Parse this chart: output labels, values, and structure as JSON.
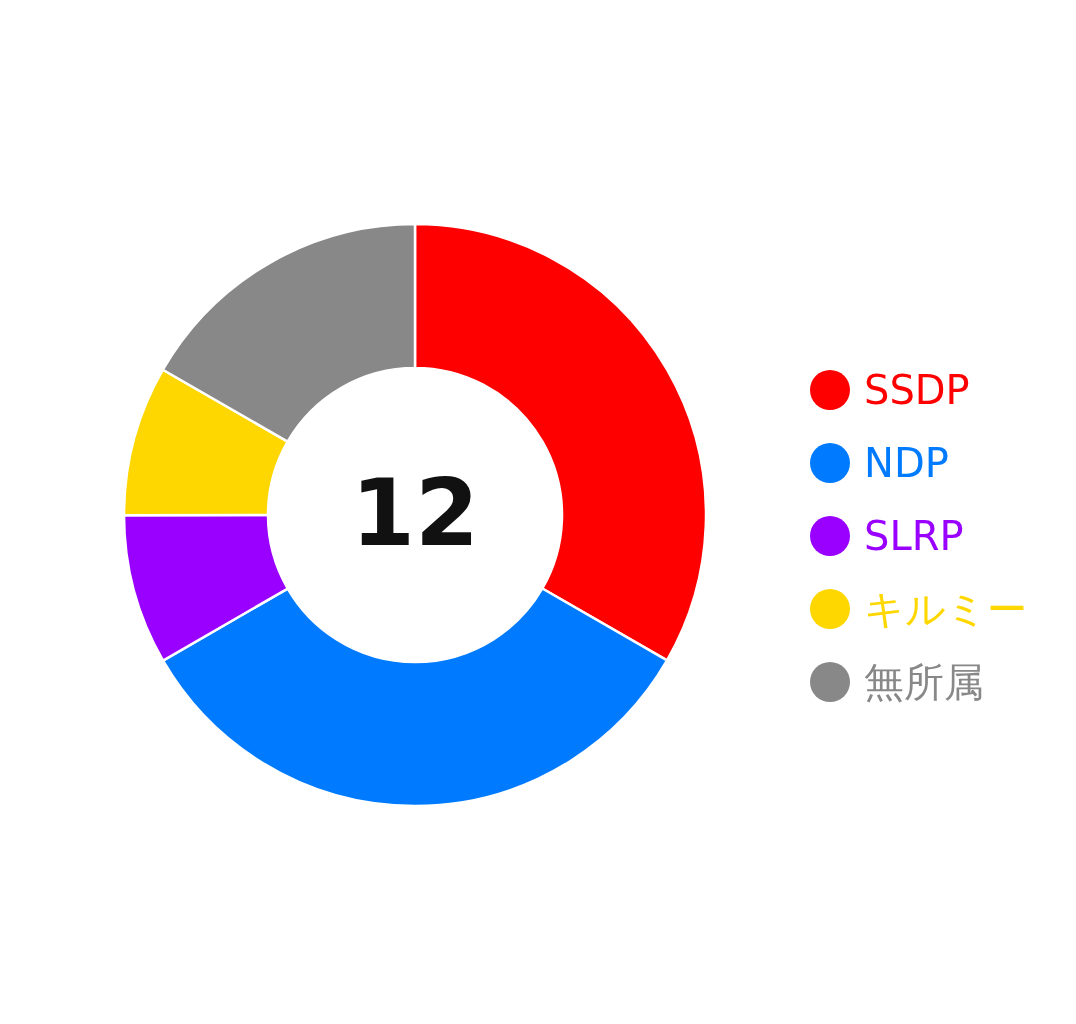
{
  "chart_data": {
    "type": "donut",
    "categories": [
      "SSDP",
      "NDP",
      "SLRP",
      "キルミー",
      "無所属"
    ],
    "values": [
      33.33,
      33.33,
      8.33,
      8.33,
      16.68
    ],
    "colors": [
      "#ff0000",
      "#007bff",
      "#9900ff",
      "#ffd700",
      "#888888"
    ],
    "legend": "right",
    "annotations": [
      "12"
    ]
  }
}
